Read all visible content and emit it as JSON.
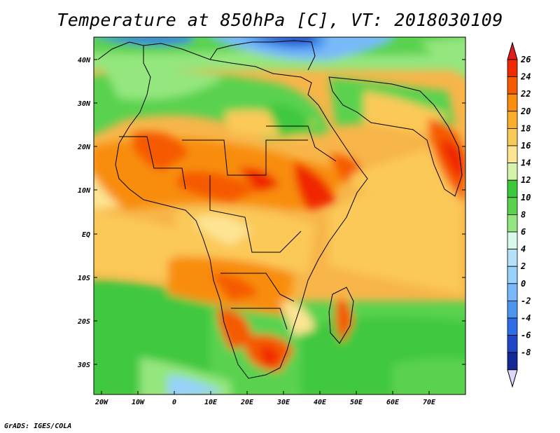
{
  "title": "Temperature at 850hPa [C], VT: 2018030109",
  "footer": "GrADS: IGES/COLA",
  "map": {
    "lat_labels": [
      "40N",
      "30N",
      "20N",
      "10N",
      "EQ",
      "10S",
      "20S",
      "30S"
    ],
    "lon_labels": [
      "20W",
      "10W",
      "0",
      "10E",
      "20E",
      "30E",
      "40E",
      "50E",
      "60E",
      "70E"
    ]
  },
  "colorbar": {
    "labels": [
      "26",
      "24",
      "22",
      "20",
      "18",
      "16",
      "14",
      "12",
      "10",
      "8",
      "6",
      "4",
      "2",
      "0",
      "-2",
      "-4",
      "-6",
      "-8"
    ],
    "colors": [
      "#f02800",
      "#f55a00",
      "#f88d10",
      "#faae2e",
      "#fbc958",
      "#fde493",
      "#d3f4a9",
      "#3cc83c",
      "#5ad250",
      "#94e67e",
      "#d9f8ec",
      "#b4e0f8",
      "#96d2fa",
      "#78b9fa",
      "#4c96f0",
      "#2d6ee6",
      "#1e46c8",
      "#142896"
    ],
    "top_arrow_color": "#e31a1c",
    "bottom_arrow_color": "#dcd8fb"
  }
}
